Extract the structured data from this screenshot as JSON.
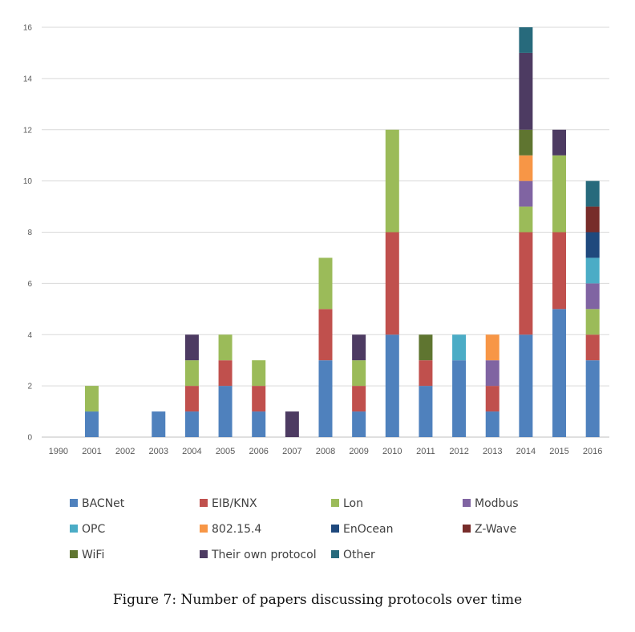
{
  "caption": "Figure 7: Number of papers discussing protocols over time",
  "chart_data": {
    "type": "bar",
    "stacked": true,
    "categories": [
      "1990",
      "2001",
      "2002",
      "2003",
      "2004",
      "2005",
      "2006",
      "2007",
      "2008",
      "2009",
      "2010",
      "2011",
      "2012",
      "2013",
      "2014",
      "2015",
      "2016"
    ],
    "ylim": [
      0,
      16
    ],
    "yticks": [
      0,
      2,
      4,
      6,
      8,
      10,
      12,
      14,
      16
    ],
    "grid": true,
    "legend_position": "bottom",
    "series": [
      {
        "name": "BACNet",
        "color": "#4f81bd",
        "values": [
          0,
          1,
          0,
          1,
          1,
          2,
          1,
          0,
          3,
          1,
          4,
          2,
          3,
          1,
          4,
          5,
          3
        ]
      },
      {
        "name": "EIB/KNX",
        "color": "#c0504d",
        "values": [
          0,
          0,
          0,
          0,
          1,
          1,
          1,
          0,
          2,
          1,
          4,
          1,
          0,
          1,
          4,
          3,
          1
        ]
      },
      {
        "name": "Lon",
        "color": "#9bbb59",
        "values": [
          0,
          1,
          0,
          0,
          1,
          1,
          1,
          0,
          2,
          1,
          4,
          0,
          0,
          0,
          1,
          3,
          1
        ]
      },
      {
        "name": "Modbus",
        "color": "#8064a2",
        "values": [
          0,
          0,
          0,
          0,
          0,
          0,
          0,
          0,
          0,
          0,
          0,
          0,
          0,
          1,
          1,
          0,
          1
        ]
      },
      {
        "name": "OPC",
        "color": "#4bacc6",
        "values": [
          0,
          0,
          0,
          0,
          0,
          0,
          0,
          0,
          0,
          0,
          0,
          0,
          1,
          0,
          0,
          0,
          1
        ]
      },
      {
        "name": "802.15.4",
        "color": "#f79646",
        "values": [
          0,
          0,
          0,
          0,
          0,
          0,
          0,
          0,
          0,
          0,
          0,
          0,
          0,
          1,
          1,
          0,
          0
        ]
      },
      {
        "name": "EnOcean",
        "color": "#1f497d",
        "values": [
          0,
          0,
          0,
          0,
          0,
          0,
          0,
          0,
          0,
          0,
          0,
          0,
          0,
          0,
          0,
          0,
          1
        ]
      },
      {
        "name": "Z-Wave",
        "color": "#772c2a",
        "values": [
          0,
          0,
          0,
          0,
          0,
          0,
          0,
          0,
          0,
          0,
          0,
          0,
          0,
          0,
          0,
          0,
          1
        ]
      },
      {
        "name": "WiFi",
        "color": "#5f7530",
        "values": [
          0,
          0,
          0,
          0,
          0,
          0,
          0,
          0,
          0,
          0,
          0,
          1,
          0,
          0,
          1,
          0,
          0
        ]
      },
      {
        "name": "Their own protocol",
        "color": "#4d3b62",
        "values": [
          0,
          0,
          0,
          0,
          1,
          0,
          0,
          1,
          0,
          1,
          0,
          0,
          0,
          0,
          3,
          1,
          0
        ]
      },
      {
        "name": "Other",
        "color": "#276a7c",
        "values": [
          0,
          0,
          0,
          0,
          0,
          0,
          0,
          0,
          0,
          0,
          0,
          0,
          0,
          0,
          1,
          0,
          1
        ]
      }
    ]
  }
}
